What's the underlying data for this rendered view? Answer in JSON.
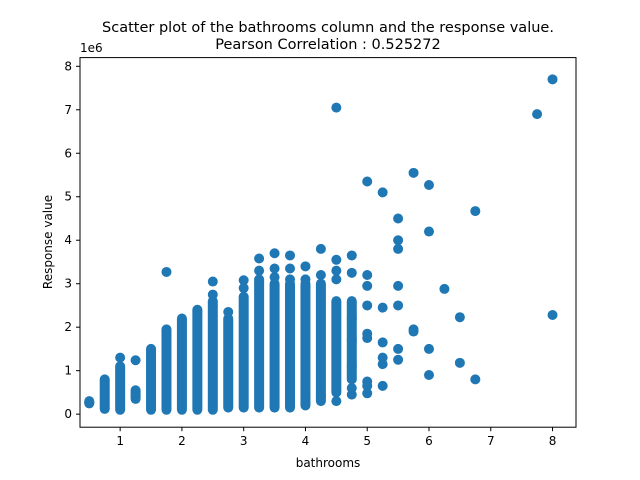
{
  "chart_data": {
    "type": "scatter",
    "title_line1": "Scatter plot of the bathrooms column and the response value.",
    "title_line2": "Pearson Correlation : 0.525272",
    "xlabel": "bathrooms",
    "ylabel": "Response value",
    "y_offset_label": "1e6",
    "xlim": [
      0.35,
      8.38
    ],
    "ylim": [
      -0.3,
      8.2
    ],
    "xticks": [
      1,
      2,
      3,
      4,
      5,
      6,
      7,
      8
    ],
    "yticks": [
      0,
      1,
      2,
      3,
      4,
      5,
      6,
      7,
      8
    ],
    "xtick_labels": [
      "1",
      "2",
      "3",
      "4",
      "5",
      "6",
      "7",
      "8"
    ],
    "ytick_labels": [
      "0",
      "1",
      "2",
      "3",
      "4",
      "5",
      "6",
      "7",
      "8"
    ],
    "marker_color": "#1f77b4",
    "grid": false,
    "legend": "none",
    "series": [
      {
        "columns": [
          {
            "x": 0.5,
            "min": 0.25,
            "max": 0.3
          },
          {
            "x": 0.75,
            "min": 0.12,
            "max": 0.8
          },
          {
            "x": 1.0,
            "min": 0.1,
            "max": 1.1
          },
          {
            "x": 1.25,
            "min": 0.35,
            "max": 0.55
          },
          {
            "x": 1.5,
            "min": 0.1,
            "max": 1.5
          },
          {
            "x": 1.75,
            "min": 0.1,
            "max": 1.95
          },
          {
            "x": 2.0,
            "min": 0.1,
            "max": 2.2
          },
          {
            "x": 2.25,
            "min": 0.1,
            "max": 2.4
          },
          {
            "x": 2.5,
            "min": 0.1,
            "max": 2.6
          },
          {
            "x": 2.75,
            "min": 0.15,
            "max": 2.2
          },
          {
            "x": 3.0,
            "min": 0.15,
            "max": 2.7
          },
          {
            "x": 3.25,
            "min": 0.15,
            "max": 3.1
          },
          {
            "x": 3.5,
            "min": 0.15,
            "max": 3.0
          },
          {
            "x": 3.75,
            "min": 0.15,
            "max": 3.0
          },
          {
            "x": 4.0,
            "min": 0.2,
            "max": 3.0
          },
          {
            "x": 4.25,
            "min": 0.3,
            "max": 3.0
          },
          {
            "x": 4.5,
            "min": 0.5,
            "max": 2.6
          },
          {
            "x": 4.75,
            "min": 0.8,
            "max": 2.6
          }
        ],
        "points": [
          [
            0.5,
            0.25
          ],
          [
            0.5,
            0.28
          ],
          [
            1.0,
            1.3
          ],
          [
            1.25,
            1.24
          ],
          [
            1.75,
            3.27
          ],
          [
            2.25,
            2.35
          ],
          [
            2.5,
            2.75
          ],
          [
            2.5,
            3.05
          ],
          [
            2.75,
            2.35
          ],
          [
            3.0,
            2.9
          ],
          [
            3.0,
            3.08
          ],
          [
            3.25,
            3.58
          ],
          [
            3.25,
            3.3
          ],
          [
            3.5,
            3.7
          ],
          [
            3.5,
            3.35
          ],
          [
            3.5,
            3.15
          ],
          [
            3.75,
            3.65
          ],
          [
            3.75,
            3.35
          ],
          [
            3.75,
            3.1
          ],
          [
            4.0,
            3.4
          ],
          [
            4.0,
            3.1
          ],
          [
            4.0,
            0.4
          ],
          [
            4.25,
            3.8
          ],
          [
            4.25,
            3.2
          ],
          [
            4.25,
            0.4
          ],
          [
            4.5,
            7.05
          ],
          [
            4.5,
            3.55
          ],
          [
            4.5,
            3.3
          ],
          [
            4.5,
            3.1
          ],
          [
            4.5,
            0.3
          ],
          [
            4.75,
            3.65
          ],
          [
            4.75,
            3.25
          ],
          [
            4.75,
            2.2
          ],
          [
            4.75,
            1.7
          ],
          [
            4.75,
            1.1
          ],
          [
            4.75,
            0.6
          ],
          [
            4.75,
            0.45
          ],
          [
            5.0,
            5.35
          ],
          [
            5.0,
            3.2
          ],
          [
            5.0,
            2.95
          ],
          [
            5.0,
            2.5
          ],
          [
            5.0,
            1.85
          ],
          [
            5.0,
            1.75
          ],
          [
            5.0,
            0.75
          ],
          [
            5.0,
            0.65
          ],
          [
            5.0,
            0.48
          ],
          [
            5.25,
            5.1
          ],
          [
            5.25,
            2.45
          ],
          [
            5.25,
            1.65
          ],
          [
            5.25,
            1.3
          ],
          [
            5.25,
            1.15
          ],
          [
            5.25,
            0.65
          ],
          [
            5.5,
            4.5
          ],
          [
            5.5,
            4.0
          ],
          [
            5.5,
            3.8
          ],
          [
            5.5,
            2.95
          ],
          [
            5.5,
            2.5
          ],
          [
            5.5,
            1.5
          ],
          [
            5.5,
            1.25
          ],
          [
            5.75,
            5.55
          ],
          [
            5.75,
            1.95
          ],
          [
            5.75,
            1.9
          ],
          [
            6.0,
            5.27
          ],
          [
            6.0,
            4.2
          ],
          [
            6.0,
            1.5
          ],
          [
            6.0,
            0.9
          ],
          [
            6.25,
            2.88
          ],
          [
            6.5,
            2.23
          ],
          [
            6.5,
            1.18
          ],
          [
            6.75,
            4.67
          ],
          [
            6.75,
            0.8
          ],
          [
            7.75,
            6.9
          ],
          [
            8.0,
            7.7
          ],
          [
            8.0,
            2.28
          ]
        ]
      }
    ]
  }
}
